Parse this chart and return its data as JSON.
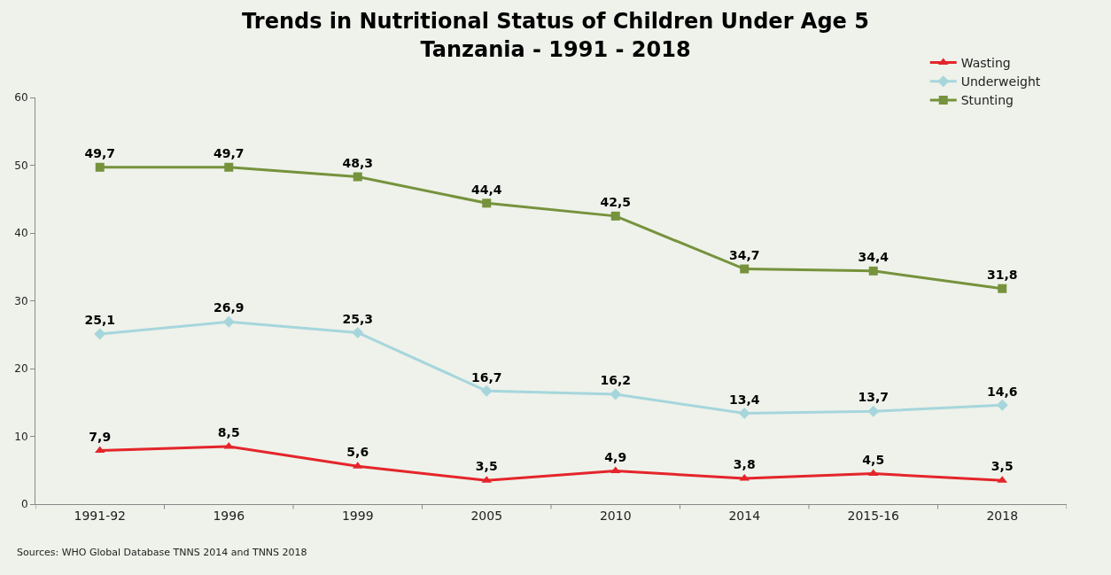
{
  "chart_data": {
    "type": "line",
    "title": "Trends in Nutritional Status of Children Under Age 5\nTanzania - 1991 - 2018",
    "categories": [
      "1991-92",
      "1996",
      "1999",
      "2005",
      "2010",
      "2014",
      "2015-16",
      "2018"
    ],
    "series": [
      {
        "name": "Wasting",
        "color": "#e4252b",
        "marker": "triangle",
        "values": [
          7.9,
          8.5,
          5.6,
          3.5,
          4.9,
          3.8,
          4.5,
          3.5
        ],
        "value_labels": [
          "7,9",
          "8,5",
          "5,6",
          "3,5",
          "4,9",
          "3,8",
          "4,5",
          "3,5"
        ]
      },
      {
        "name": "Underweight",
        "color": "#a6d6dc",
        "marker": "diamond",
        "values": [
          25.1,
          26.9,
          25.3,
          16.7,
          16.2,
          13.4,
          13.7,
          14.6
        ],
        "value_labels": [
          "25,1",
          "26,9",
          "25,3",
          "16,7",
          "16,2",
          "13,4",
          "13,7",
          "14,6"
        ]
      },
      {
        "name": "Stunting",
        "color": "#76923c",
        "marker": "square",
        "values": [
          49.7,
          49.7,
          48.3,
          44.4,
          42.5,
          34.7,
          34.4,
          31.8
        ],
        "value_labels": [
          "49,7",
          "49,7",
          "48,3",
          "44,4",
          "42,5",
          "34,7",
          "34,4",
          "31,8"
        ]
      }
    ],
    "ylim": [
      0,
      60
    ],
    "yticks": [
      0,
      10,
      20,
      30,
      40,
      50,
      60
    ],
    "grid": false,
    "legend": "top right",
    "line_style": "solid",
    "annotations": [
      "Sources: WHO Global Database TNNS 2014 and TNNS 2018"
    ]
  }
}
